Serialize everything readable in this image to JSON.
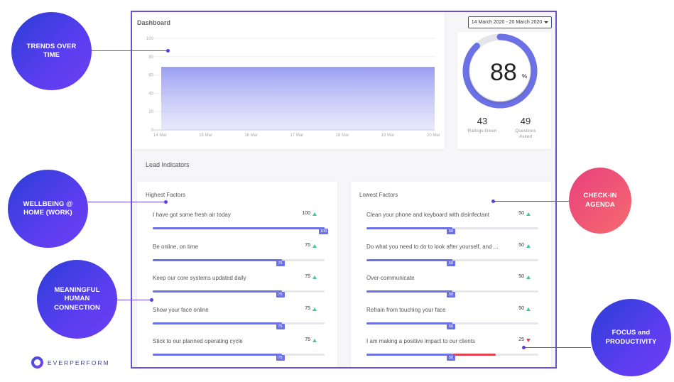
{
  "callouts": {
    "trends": "TRENDS OVER TIME",
    "wellbeing": "WELLBEING @ HOME (WORK)",
    "meaningful": "MEANINGFUL HUMAN CONNECTION",
    "checkin": "CHECK-IN AGENDA",
    "focus": "FOCUS and PRODUCTIVITY"
  },
  "colors": {
    "accent": "#6c72e6",
    "frame": "#6a4fd0",
    "trend_up": "#4cc39a",
    "trend_down": "#e0424f"
  },
  "dashboard": {
    "title": "Dashboard",
    "date_range": "14 March 2020 - 20 March 2020",
    "chart_data": {
      "type": "area",
      "x": [
        "14 Mar",
        "15 Mar",
        "16 Mar",
        "17 Mar",
        "18 Mar",
        "19 Mar",
        "20 Mar"
      ],
      "values": [
        68,
        68,
        68,
        68,
        68,
        68,
        68
      ],
      "yticks": [
        "100",
        "80",
        "60",
        "40",
        "20",
        "0"
      ],
      "ylim": [
        0,
        100
      ]
    }
  },
  "score": {
    "value": "88",
    "unit": "%",
    "percent": 88,
    "ratings": {
      "value": "43",
      "label": "Ratings Given"
    },
    "questions": {
      "value": "49",
      "label": "Questions Asked"
    }
  },
  "lead": {
    "title": "Lead Indicators",
    "highest": {
      "title": "Highest Factors",
      "items": [
        {
          "label": "I have got some fresh air today",
          "value": "100",
          "pct": 100,
          "trend": "up"
        },
        {
          "label": "Be online, on time",
          "value": "75",
          "pct": 75,
          "trend": "up"
        },
        {
          "label": "Keep our core systems updated daily",
          "value": "75",
          "pct": 75,
          "trend": "up"
        },
        {
          "label": "Show your face online",
          "value": "75",
          "pct": 75,
          "trend": "up"
        },
        {
          "label": "Stick to our planned operating cycle",
          "value": "75",
          "pct": 75,
          "trend": "up"
        }
      ]
    },
    "lowest": {
      "title": "Lowest Factors",
      "items": [
        {
          "label": "Clean your phone and keyboard with disinfectant",
          "value": "50",
          "pct": 50,
          "trend": "up"
        },
        {
          "label": "Do what you need to do to look after yourself, and ...",
          "value": "50",
          "pct": 50,
          "trend": "up"
        },
        {
          "label": "Over-communicate",
          "value": "50",
          "pct": 50,
          "trend": "up"
        },
        {
          "label": "Refrain from touching your face",
          "value": "50",
          "pct": 50,
          "trend": "up"
        },
        {
          "label": "I am making a positive impact to our clients",
          "value": "25",
          "pct": 50,
          "trend": "down",
          "badge": "50",
          "red_to_pct": 75
        }
      ]
    }
  },
  "brand": {
    "name": "EVERPERFORM"
  }
}
